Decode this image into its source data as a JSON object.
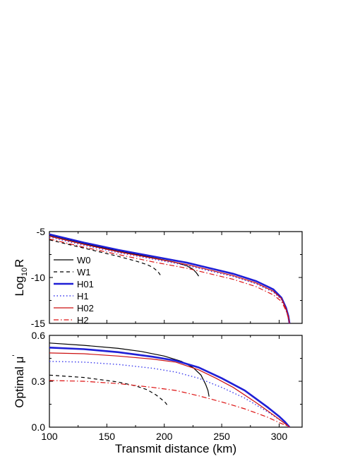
{
  "chart_data": [
    {
      "type": "line",
      "panel": "top",
      "ylabel_main": "Log",
      "ylabel_sub": "10",
      "ylabel_tail": "R",
      "xlabel": "",
      "xlim": [
        100,
        320
      ],
      "ylim": [
        -15,
        -5
      ],
      "xticks": [
        100,
        150,
        200,
        250,
        300
      ],
      "yticks": [
        -15,
        -10,
        -5
      ],
      "ytick_labels": [
        "-15",
        "-10",
        "-5"
      ],
      "grid": false,
      "legend": {
        "placement": "lower-left",
        "entries": [
          "W0",
          "W1",
          "H01",
          "H1",
          "H02",
          "H2"
        ]
      },
      "series": [
        {
          "name": "W0",
          "color": "#000000",
          "points": [
            [
              100,
              -5.4
            ],
            [
              120,
              -6.0
            ],
            [
              140,
              -6.6
            ],
            [
              160,
              -7.1
            ],
            [
              180,
              -7.6
            ],
            [
              200,
              -8.1
            ],
            [
              210,
              -8.35
            ],
            [
              220,
              -8.75
            ],
            [
              225,
              -9.1
            ],
            [
              228,
              -9.5
            ],
            [
              230,
              -9.85
            ]
          ]
        },
        {
          "name": "W1",
          "color": "#000000",
          "points": [
            [
              100,
              -5.9
            ],
            [
              120,
              -6.5
            ],
            [
              140,
              -7.1
            ],
            [
              160,
              -7.7
            ],
            [
              175,
              -8.2
            ],
            [
              185,
              -8.6
            ],
            [
              190,
              -8.9
            ],
            [
              193,
              -9.2
            ],
            [
              195,
              -9.45
            ],
            [
              197,
              -9.8
            ]
          ]
        },
        {
          "name": "H01",
          "color": "#1f1fd6",
          "points": [
            [
              100,
              -5.3
            ],
            [
              130,
              -6.2
            ],
            [
              160,
              -7.0
            ],
            [
              190,
              -7.7
            ],
            [
              220,
              -8.4
            ],
            [
              240,
              -9.0
            ],
            [
              260,
              -9.6
            ],
            [
              280,
              -10.4
            ],
            [
              295,
              -11.3
            ],
            [
              302,
              -12.2
            ],
            [
              306,
              -13.3
            ],
            [
              308,
              -14.2
            ],
            [
              309,
              -15
            ]
          ]
        },
        {
          "name": "H1",
          "color": "#3a3aee",
          "points": [
            [
              100,
              -5.6
            ],
            [
              130,
              -6.5
            ],
            [
              160,
              -7.3
            ],
            [
              190,
              -8.0
            ],
            [
              220,
              -8.7
            ],
            [
              240,
              -9.3
            ],
            [
              260,
              -9.9
            ],
            [
              280,
              -10.7
            ],
            [
              295,
              -11.6
            ],
            [
              302,
              -12.4
            ],
            [
              306,
              -13.5
            ],
            [
              308,
              -14.3
            ],
            [
              309,
              -15
            ]
          ]
        },
        {
          "name": "H02",
          "color": "#cc1111",
          "points": [
            [
              100,
              -5.5
            ],
            [
              130,
              -6.4
            ],
            [
              160,
              -7.2
            ],
            [
              190,
              -7.9
            ],
            [
              220,
              -8.6
            ],
            [
              240,
              -9.2
            ],
            [
              260,
              -9.8
            ],
            [
              280,
              -10.6
            ],
            [
              295,
              -11.5
            ],
            [
              302,
              -12.3
            ],
            [
              306,
              -13.4
            ],
            [
              308,
              -14.3
            ],
            [
              309,
              -15
            ]
          ]
        },
        {
          "name": "H2",
          "color": "#dd1111",
          "points": [
            [
              100,
              -5.8
            ],
            [
              130,
              -6.7
            ],
            [
              160,
              -7.5
            ],
            [
              190,
              -8.3
            ],
            [
              220,
              -9.0
            ],
            [
              240,
              -9.6
            ],
            [
              260,
              -10.2
            ],
            [
              280,
              -11.0
            ],
            [
              295,
              -11.9
            ],
            [
              302,
              -12.6
            ],
            [
              306,
              -13.6
            ],
            [
              308,
              -14.4
            ],
            [
              309,
              -15
            ]
          ]
        }
      ]
    },
    {
      "type": "line",
      "panel": "bottom",
      "ylabel_main": "Optimal μ",
      "ylabel_sup": "'",
      "xlabel": "Transmit distance (km)",
      "xlim": [
        100,
        320
      ],
      "ylim": [
        0,
        0.6
      ],
      "xticks": [
        100,
        150,
        200,
        250,
        300
      ],
      "xtick_labels": [
        "100",
        "150",
        "200",
        "250",
        "300"
      ],
      "yticks": [
        0,
        0.3,
        0.6
      ],
      "ytick_labels": [
        "0.0",
        "0.3",
        "0.6"
      ],
      "grid": false,
      "series": [
        {
          "name": "W0",
          "color": "#000000",
          "points": [
            [
              100,
              0.55
            ],
            [
              130,
              0.535
            ],
            [
              160,
              0.515
            ],
            [
              180,
              0.495
            ],
            [
              200,
              0.465
            ],
            [
              215,
              0.43
            ],
            [
              225,
              0.39
            ],
            [
              232,
              0.34
            ],
            [
              236,
              0.28
            ],
            [
              238,
              0.24
            ],
            [
              239,
              0.2
            ]
          ]
        },
        {
          "name": "W1",
          "color": "#000000",
          "points": [
            [
              100,
              0.34
            ],
            [
              130,
              0.325
            ],
            [
              160,
              0.295
            ],
            [
              175,
              0.27
            ],
            [
              185,
              0.245
            ],
            [
              193,
              0.21
            ],
            [
              198,
              0.18
            ],
            [
              201,
              0.16
            ],
            [
              203,
              0.14
            ]
          ]
        },
        {
          "name": "H01",
          "color": "#1f1fd6",
          "points": [
            [
              100,
              0.52
            ],
            [
              130,
              0.51
            ],
            [
              160,
              0.49
            ],
            [
              190,
              0.46
            ],
            [
              210,
              0.435
            ],
            [
              230,
              0.39
            ],
            [
              250,
              0.32
            ],
            [
              270,
              0.24
            ],
            [
              290,
              0.13
            ],
            [
              300,
              0.07
            ],
            [
              305,
              0.035
            ],
            [
              309,
              0
            ]
          ]
        },
        {
          "name": "H1",
          "color": "#3a3aee",
          "points": [
            [
              100,
              0.43
            ],
            [
              130,
              0.425
            ],
            [
              160,
              0.41
            ],
            [
              190,
              0.385
            ],
            [
              210,
              0.36
            ],
            [
              230,
              0.32
            ],
            [
              250,
              0.26
            ],
            [
              270,
              0.19
            ],
            [
              290,
              0.1
            ],
            [
              300,
              0.05
            ],
            [
              305,
              0.025
            ],
            [
              309,
              0
            ]
          ]
        },
        {
          "name": "H02",
          "color": "#cc1111",
          "points": [
            [
              100,
              0.485
            ],
            [
              130,
              0.48
            ],
            [
              160,
              0.465
            ],
            [
              190,
              0.445
            ],
            [
              210,
              0.425
            ],
            [
              230,
              0.375
            ],
            [
              245,
              0.32
            ],
            [
              260,
              0.26
            ],
            [
              280,
              0.16
            ],
            [
              295,
              0.08
            ],
            [
              303,
              0.035
            ],
            [
              309,
              0
            ]
          ]
        },
        {
          "name": "H2",
          "color": "#dd1111",
          "points": [
            [
              100,
              0.305
            ],
            [
              130,
              0.3
            ],
            [
              160,
              0.285
            ],
            [
              190,
              0.26
            ],
            [
              210,
              0.24
            ],
            [
              230,
              0.205
            ],
            [
              250,
              0.165
            ],
            [
              270,
              0.12
            ],
            [
              290,
              0.065
            ],
            [
              300,
              0.03
            ],
            [
              305,
              0.015
            ],
            [
              309,
              0
            ]
          ]
        }
      ]
    }
  ]
}
